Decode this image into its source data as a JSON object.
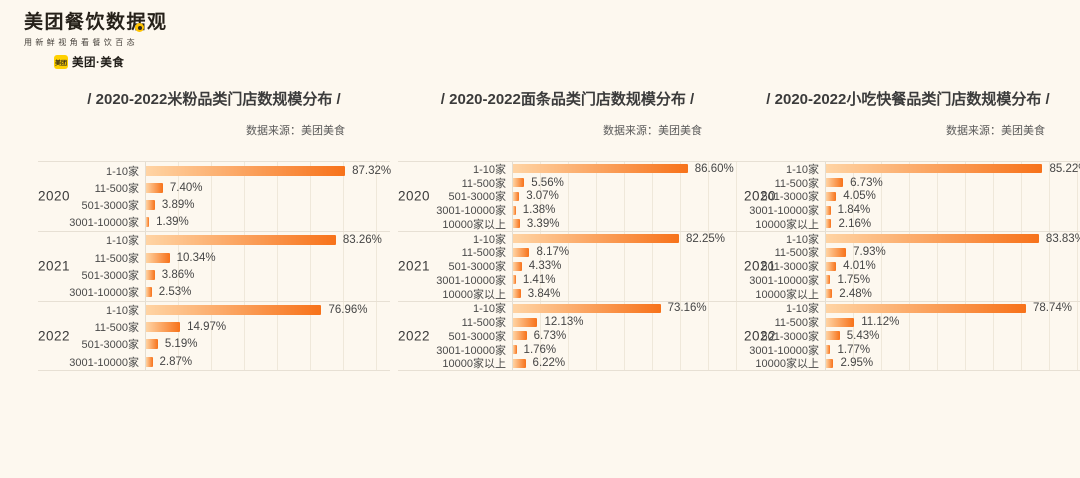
{
  "page": {
    "background": "#fdf8ef"
  },
  "logo": {
    "title": "美团餐饮数据观",
    "tagline": "用新鲜视角看餐饮百态",
    "brand_icon_label": "美团",
    "brand_label": "美团·美食",
    "brand_yellow": "#ffd100"
  },
  "colors": {
    "background": "#fdf8ef",
    "bar_gradient_start": "#ffd4a4",
    "bar_gradient_end": "#f7721a",
    "grid_line": "#efe8da",
    "separator": "#e7e0d4",
    "title_text": "#3b3b3b"
  },
  "chart_data": [
    {
      "type": "bar",
      "orientation": "horizontal",
      "title": "/ 2020-2022米粉品类门店数规模分布 /",
      "source": "数据来源：美团美食",
      "value_unit": "%",
      "xlim": [
        0,
        107
      ],
      "grid": true,
      "categories": [
        "1-10家",
        "11-500家",
        "501-3000家",
        "3001-10000家"
      ],
      "groups": [
        {
          "year": "2020",
          "values": [
            87.32,
            7.4,
            3.89,
            1.39
          ],
          "labels": [
            "87.32%",
            "7.40%",
            "3.89%",
            "1.39%"
          ]
        },
        {
          "year": "2021",
          "values": [
            83.26,
            10.34,
            3.86,
            2.53
          ],
          "labels": [
            "83.26%",
            "10.34%",
            "3.86%",
            "2.53%"
          ]
        },
        {
          "year": "2022",
          "values": [
            76.96,
            14.97,
            5.19,
            2.87
          ],
          "labels": [
            "76.96%",
            "14.97%",
            "5.19%",
            "2.87%"
          ]
        }
      ]
    },
    {
      "type": "bar",
      "orientation": "horizontal",
      "title": "/ 2020-2022面条品类门店数规模分布 /",
      "source": "数据来源：美团美食",
      "value_unit": "%",
      "xlim": [
        0,
        111
      ],
      "grid": true,
      "categories": [
        "1-10家",
        "11-500家",
        "501-3000家",
        "3001-10000家",
        "10000家以上"
      ],
      "groups": [
        {
          "year": "2020",
          "values": [
            86.6,
            5.56,
            3.07,
            1.38,
            3.39
          ],
          "labels": [
            "86.60%",
            "5.56%",
            "3.07%",
            "1.38%",
            "3.39%"
          ]
        },
        {
          "year": "2021",
          "values": [
            82.25,
            8.17,
            4.33,
            1.41,
            3.84
          ],
          "labels": [
            "82.25%",
            "8.17%",
            "4.33%",
            "1.41%",
            "3.84%"
          ]
        },
        {
          "year": "2022",
          "values": [
            73.16,
            12.13,
            6.73,
            1.76,
            6.22
          ],
          "labels": [
            "73.16%",
            "12.13%",
            "6.73%",
            "1.76%",
            "6.22%"
          ]
        }
      ]
    },
    {
      "type": "bar",
      "orientation": "horizontal",
      "title": "/ 2020-2022小吃快餐品类门店数规模分布 /",
      "source": "数据来源：美团美食",
      "value_unit": "%",
      "xlim": [
        0,
        100
      ],
      "grid": true,
      "categories": [
        "1-10家",
        "11-500家",
        "501-3000家",
        "3001-10000家",
        "10000家以上"
      ],
      "groups": [
        {
          "year": "2020",
          "values": [
            85.22,
            6.73,
            4.05,
            1.84,
            2.16
          ],
          "labels": [
            "85.22%",
            "6.73%",
            "4.05%",
            "1.84%",
            "2.16%"
          ]
        },
        {
          "year": "2021",
          "values": [
            83.83,
            7.93,
            4.01,
            1.75,
            2.48
          ],
          "labels": [
            "83.83%",
            "7.93%",
            "4.01%",
            "1.75%",
            "2.48%"
          ]
        },
        {
          "year": "2022",
          "values": [
            78.74,
            11.12,
            5.43,
            1.77,
            2.95
          ],
          "labels": [
            "78.74%",
            "11.12%",
            "5.43%",
            "1.77%",
            "2.95%"
          ]
        }
      ]
    }
  ]
}
